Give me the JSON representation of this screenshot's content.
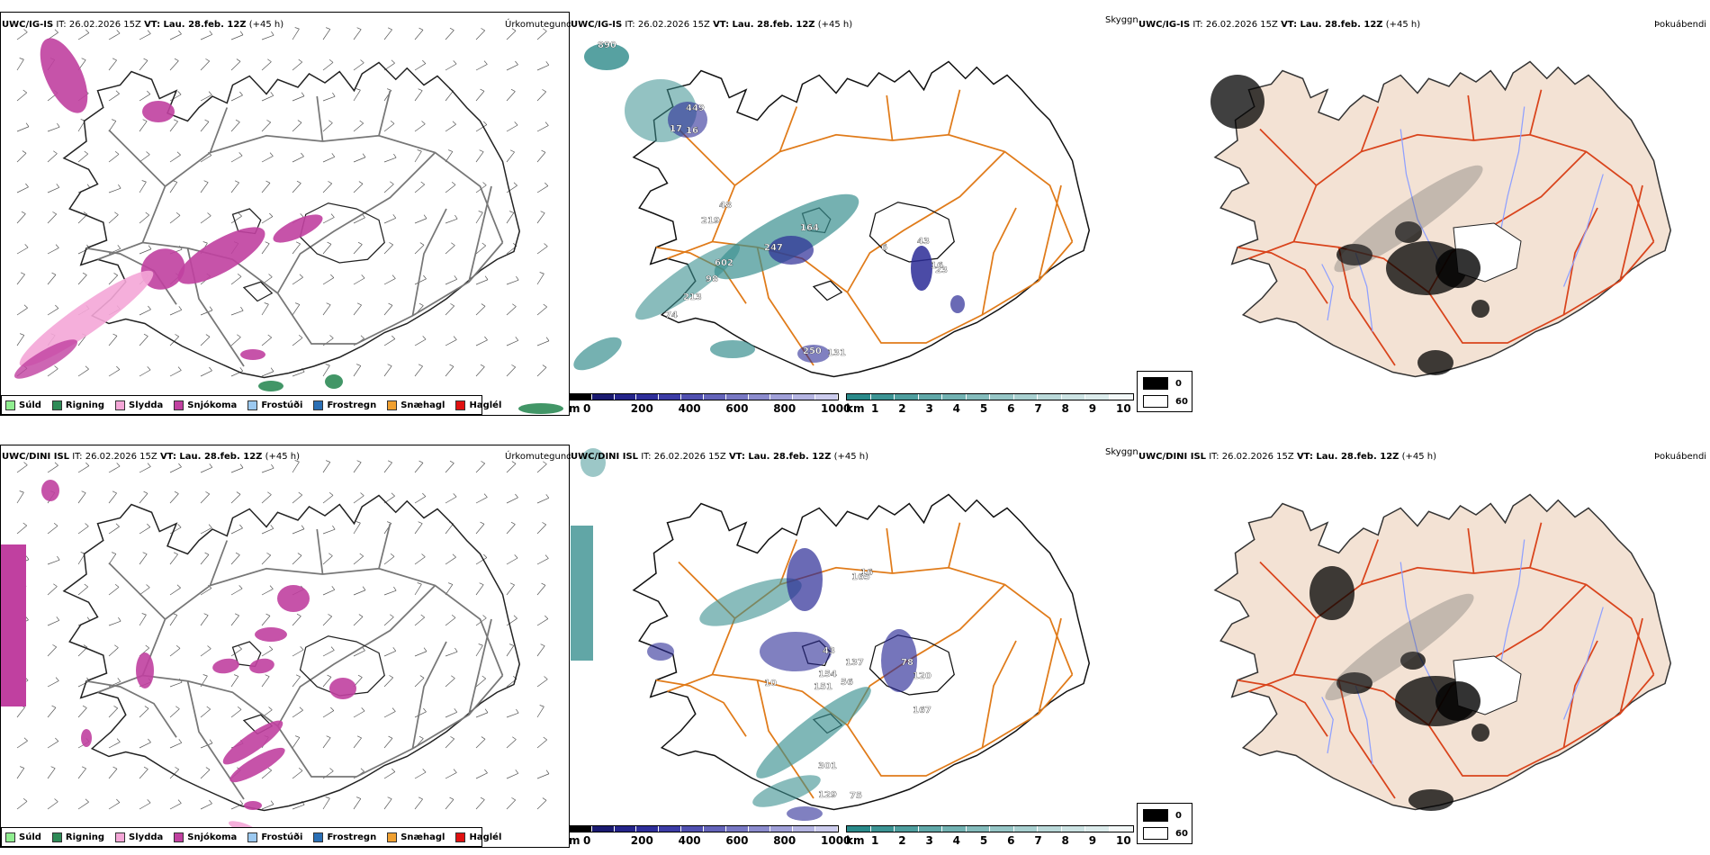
{
  "rows": [
    {
      "model": "UWC/IG-IS",
      "it_label": "IT:",
      "it_value": "26.02.2026 15Z",
      "vt_label": "VT: Lau. 28.feb. 12Z",
      "lead": "(+45 h)",
      "precip_title": "Úrkomutegund",
      "vis_title": "Skyggni",
      "fog_title": "Þokuábendi",
      "vis_labels": [
        "890",
        "449",
        "17",
        "16",
        "48",
        "219",
        "164",
        "247",
        "43",
        "602",
        "98",
        "213",
        "74",
        "250",
        "131",
        "16",
        "6",
        "23"
      ],
      "vis_label_colors": [
        "#ffffff",
        "#ffffff",
        "#ffffff",
        "#ffffff",
        "#ffffff",
        "#ffffff",
        "#ffffff",
        "#ffffff",
        "#ffffff",
        "#ffffff",
        "#ffffff",
        "#ffffff",
        "#ffffff",
        "#ffffff",
        "#ffffff",
        "#ffffff",
        "#ffffff",
        "#ffffff"
      ]
    },
    {
      "model": "UWC/DINI ISL",
      "it_label": "IT:",
      "it_value": "26.02.2026 15Z",
      "vt_label": "VT: Lau. 28.feb. 12Z",
      "lead": "(+45 h)",
      "precip_title": "Úrkomutegund",
      "vis_title": "Skyggni",
      "fog_title": "Þokuábendi",
      "vis_labels": [
        "165",
        "16",
        "154",
        "137",
        "120",
        "167",
        "78",
        "301",
        "129",
        "75",
        "151",
        "56",
        "43",
        "10"
      ],
      "vis_label_colors": [
        "#ffffff",
        "#ffffff",
        "#ffffff",
        "#ffffff",
        "#ffffff",
        "#ffffff",
        "#ffffff",
        "#ffffff",
        "#ffffff",
        "#ffffff",
        "#ffffff",
        "#ffffff",
        "#ffffff",
        "#ffffff"
      ]
    }
  ],
  "precip_legend": [
    {
      "label": "Súld",
      "color": "#90ee90"
    },
    {
      "label": "Rigning",
      "color": "#2e8b57"
    },
    {
      "label": "Slydda",
      "color": "#f4a6d7"
    },
    {
      "label": "Snjókoma",
      "color": "#c040a0"
    },
    {
      "label": "Frostúði",
      "color": "#9cc9f0"
    },
    {
      "label": "Frostregn",
      "color": "#2a6fb5"
    },
    {
      "label": "Snæhagl",
      "color": "#f0a030"
    },
    {
      "label": "Haglél",
      "color": "#e01010"
    }
  ],
  "cloud_cbar": {
    "unit": "m",
    "ticks": [
      "0",
      "200",
      "400",
      "600",
      "800",
      "1000"
    ],
    "colors": [
      "#000000",
      "#1a1a70",
      "#24248a",
      "#2e2e9a",
      "#3c3ca6",
      "#5050b0",
      "#6464ba",
      "#7878c4",
      "#8c8cce",
      "#a0a0d8",
      "#b4b4e2",
      "#ccccee"
    ]
  },
  "vis_cbar": {
    "unit": "km",
    "ticks": [
      "1",
      "2",
      "3",
      "4",
      "5",
      "6",
      "7",
      "8",
      "9",
      "10"
    ],
    "colors": [
      "#2a8a8a",
      "#3c9494",
      "#4e9e9e",
      "#60a8a8",
      "#72b2b2",
      "#84bcbc",
      "#96c6c6",
      "#a8d0d0",
      "#bad9d9",
      "#cce3e3",
      "#dcecec",
      "#f2f8f8"
    ]
  },
  "cloud_key": {
    "values": [
      "0",
      "60"
    ]
  },
  "colors": {
    "coast": "#000000",
    "roads": "#e07b1a",
    "fog_land": "#f3e2d4",
    "fog_roads": "#d9441c",
    "rivers": "#8fa0ff",
    "snow": "#c040a0",
    "sleet": "#f4a6d7",
    "rain": "#2e8b57",
    "vis": "#3a9090",
    "lowcloud": "#2b2b96"
  }
}
